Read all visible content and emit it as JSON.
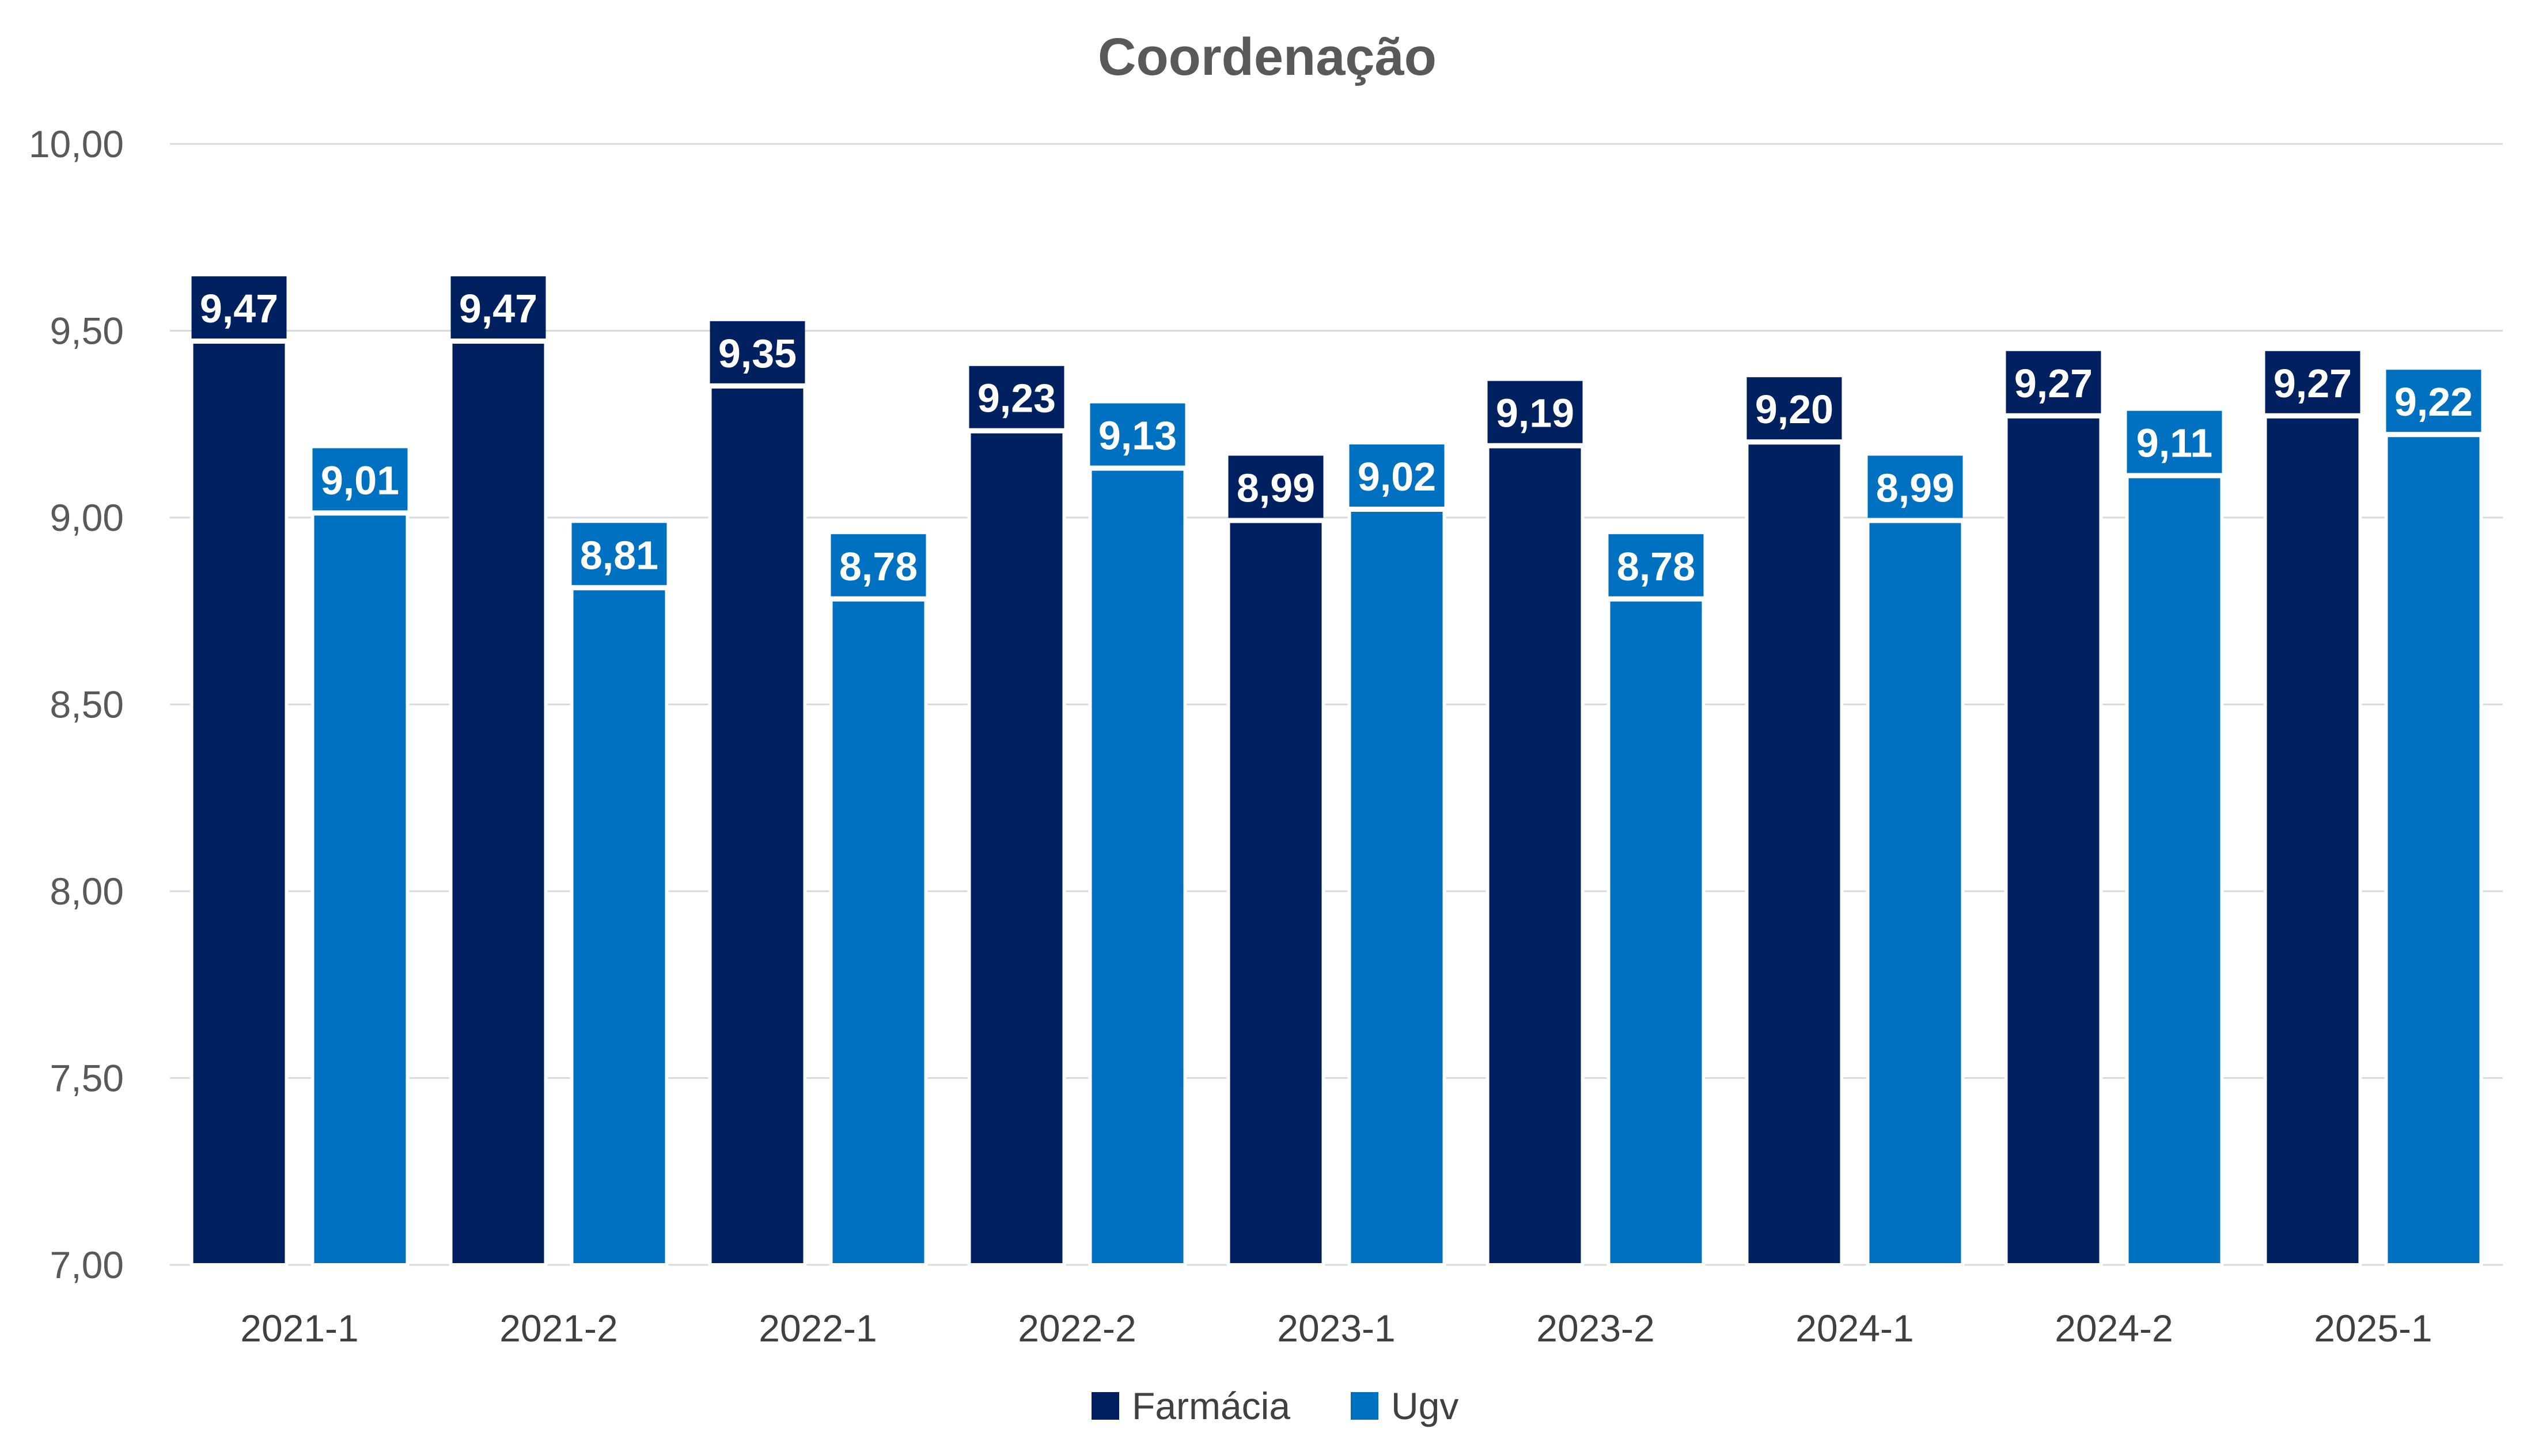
{
  "chart_data": {
    "type": "bar",
    "title": "Coordenação",
    "xlabel": "",
    "ylabel": "",
    "categories": [
      "2021-1",
      "2021-2",
      "2022-1",
      "2022-2",
      "2023-1",
      "2023-2",
      "2024-1",
      "2024-2",
      "2025-1"
    ],
    "series": [
      {
        "name": "Farmácia",
        "color": "#002060",
        "values": [
          9.47,
          9.47,
          9.35,
          9.23,
          8.99,
          9.19,
          9.2,
          9.27,
          9.27
        ],
        "labels": [
          "9,47",
          "9,47",
          "9,35",
          "9,23",
          "8,99",
          "9,19",
          "9,20",
          "9,27",
          "9,27"
        ]
      },
      {
        "name": "Ugv",
        "color": "#0070C0",
        "values": [
          9.01,
          8.81,
          8.78,
          9.13,
          9.02,
          8.78,
          8.99,
          9.11,
          9.22
        ],
        "labels": [
          "9,01",
          "8,81",
          "8,78",
          "9,13",
          "9,02",
          "8,78",
          "8,99",
          "9,11",
          "9,22"
        ]
      }
    ],
    "ylim": [
      7.0,
      10.0
    ],
    "yticks": [
      7.0,
      7.5,
      8.0,
      8.5,
      9.0,
      9.5,
      10.0
    ],
    "ytick_labels": [
      "7,00",
      "7,50",
      "8,00",
      "8,50",
      "9,00",
      "9,50",
      "10,00"
    ],
    "grid": true,
    "legend_position": "bottom"
  }
}
